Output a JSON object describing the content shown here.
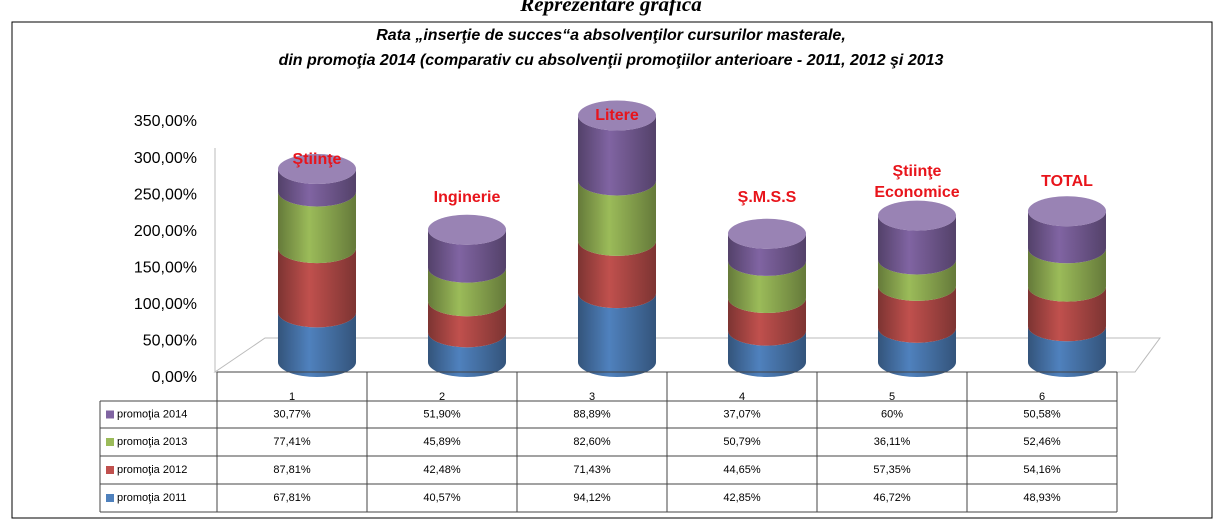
{
  "chart_data": {
    "type": "bar",
    "heading": "Reprezentare grafică",
    "title": "Rata „inserţie de succes“a absolvenţilor cursurilor masterale,",
    "subtitle": "din promoţia 2014 (comparativ cu absolvenţii promoţiilor anterioare -  2011, 2012 şi 2013",
    "categories": [
      "1",
      "2",
      "3",
      "4",
      "5",
      "6"
    ],
    "annotations": [
      [
        "Ştiinţe"
      ],
      [
        "Inginerie"
      ],
      [
        "Litere"
      ],
      [
        "Ş.M.S.S"
      ],
      [
        "Ştiinţe",
        "Economice"
      ],
      [
        "TOTAL"
      ]
    ],
    "stacked": true,
    "series": [
      {
        "name": "promoţia 2011",
        "color": "#4f81bd",
        "values": [
          67.81,
          40.57,
          94.12,
          42.85,
          46.72,
          48.93
        ],
        "value_labels": [
          "67,81%",
          "40,57%",
          "94,12%",
          "42,85%",
          "46,72%",
          "48,93%"
        ]
      },
      {
        "name": "promoţia 2012",
        "color": "#c0504d",
        "values": [
          87.81,
          42.48,
          71.43,
          44.65,
          57.35,
          54.16
        ],
        "value_labels": [
          "87,81%",
          "42,48%",
          "71,43%",
          "44,65%",
          "57,35%",
          "54,16%"
        ]
      },
      {
        "name": "promoţia 2013",
        "color": "#9bbb59",
        "values": [
          77.41,
          45.89,
          82.6,
          50.79,
          36.11,
          52.46
        ],
        "value_labels": [
          "77,41%",
          "45,89%",
          "82,60%",
          "50,79%",
          "36,11%",
          "52,46%"
        ]
      },
      {
        "name": "promoţia 2014",
        "color": "#8064a2",
        "values": [
          30.77,
          51.9,
          88.89,
          37.07,
          60,
          50.58
        ],
        "value_labels": [
          "30,77%",
          "51,90%",
          "88,89%",
          "37,07%",
          "60%",
          "50,58%"
        ]
      }
    ],
    "ylim": [
      0,
      350
    ],
    "yticks": [
      {
        "value": 0,
        "label": "0,00%"
      },
      {
        "value": 50,
        "label": "50,00%"
      },
      {
        "value": 100,
        "label": "100,00%"
      },
      {
        "value": 150,
        "label": "150,00%"
      },
      {
        "value": 200,
        "label": "200,00%"
      },
      {
        "value": 250,
        "label": "250,00%"
      },
      {
        "value": 300,
        "label": "300,00%"
      },
      {
        "value": 350,
        "label": "350,00%"
      }
    ],
    "legend": "table"
  }
}
